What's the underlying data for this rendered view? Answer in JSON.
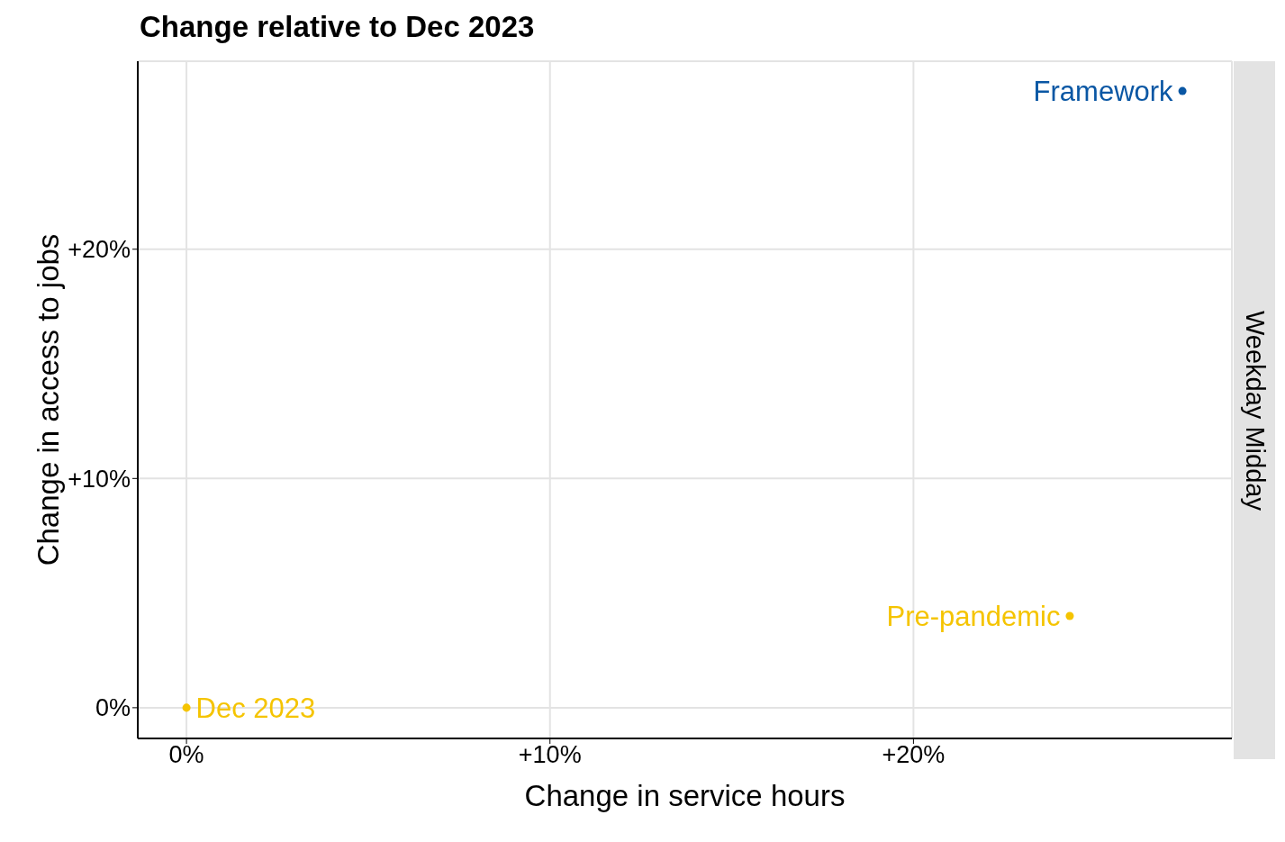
{
  "chart_data": {
    "type": "scatter",
    "title": "Change relative to Dec 2023",
    "xlabel": "Change in service hours",
    "ylabel": "Change in access to jobs",
    "annotations": [
      "Weekday Midday"
    ],
    "series": [
      {
        "name": "Dec 2023",
        "color": "#f5c400",
        "x": [
          0
        ],
        "values": [
          0
        ]
      },
      {
        "name": "Pre-pandemic",
        "color": "#f5c400",
        "x": [
          24.3
        ],
        "values": [
          4.0
        ]
      },
      {
        "name": "Framework",
        "color": "#0a57a4",
        "x": [
          27.4
        ],
        "values": [
          26.9
        ]
      }
    ],
    "xlim": [
      -1.34,
      28.76
    ],
    "ylim": [
      -1.34,
      28.2
    ],
    "xticks": [
      {
        "value": 0,
        "label": "0%"
      },
      {
        "value": 10,
        "label": "+10%"
      },
      {
        "value": 20,
        "label": "+20%"
      }
    ],
    "yticks": [
      {
        "value": 0,
        "label": "0%"
      },
      {
        "value": 10,
        "label": "+10%"
      },
      {
        "value": 20,
        "label": "+20%"
      }
    ],
    "grid": true,
    "legend": false,
    "marker": "circle"
  }
}
